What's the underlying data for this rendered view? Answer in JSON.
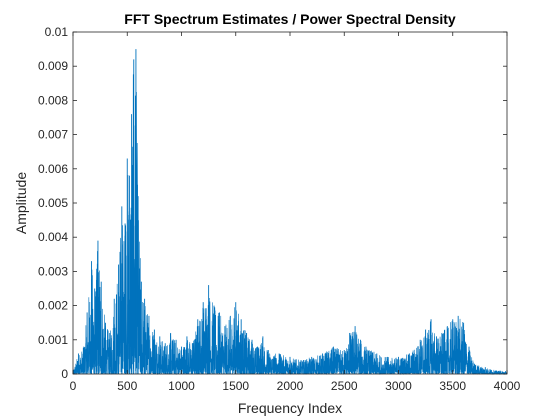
{
  "chart_data": {
    "type": "line",
    "title": "FFT Spectrum Estimates / Power Spectral Density",
    "xlabel": "Frequency Index",
    "ylabel": "Amplitude",
    "xlim": [
      0,
      4000
    ],
    "ylim": [
      0,
      0.01
    ],
    "x_ticks": [
      "0",
      "500",
      "1000",
      "1500",
      "2000",
      "2500",
      "3000",
      "3500",
      "4000"
    ],
    "y_ticks": [
      "0",
      "0.001",
      "0.002",
      "0.003",
      "0.004",
      "0.005",
      "0.006",
      "0.007",
      "0.008",
      "0.009",
      "0.01"
    ],
    "grid": false,
    "legend": "none",
    "line_color": "#0072BD",
    "series": [
      {
        "x": [
          0,
          50,
          100,
          130,
          170,
          200,
          230,
          260,
          300,
          340,
          380,
          420,
          450,
          480,
          500,
          520,
          540,
          560,
          580,
          600,
          630,
          660,
          700,
          750,
          800,
          850,
          900,
          950,
          1000,
          1050,
          1100,
          1150,
          1200,
          1250,
          1300,
          1350,
          1400,
          1450,
          1500,
          1550,
          1600,
          1650,
          1700,
          1750,
          1800,
          1900,
          2000,
          2100,
          2200,
          2300,
          2400,
          2500,
          2550,
          2600,
          2650,
          2700,
          2800,
          2900,
          3000,
          3100,
          3200,
          3250,
          3300,
          3350,
          3400,
          3450,
          3500,
          3550,
          3600,
          3650,
          3700,
          3800,
          3900,
          4000
        ],
        "y": [
          0.0001,
          0.0006,
          0.0008,
          0.0018,
          0.0033,
          0.0025,
          0.0039,
          0.0027,
          0.0015,
          0.0012,
          0.0022,
          0.0032,
          0.0049,
          0.0044,
          0.0063,
          0.0058,
          0.0076,
          0.0092,
          0.0095,
          0.0052,
          0.0027,
          0.0022,
          0.0017,
          0.0013,
          0.0011,
          0.0009,
          0.0012,
          0.001,
          0.0008,
          0.0011,
          0.0009,
          0.0016,
          0.0021,
          0.0026,
          0.002,
          0.0018,
          0.0014,
          0.0017,
          0.0021,
          0.0016,
          0.0012,
          0.001,
          0.0008,
          0.0011,
          0.0007,
          0.0006,
          0.0005,
          0.0004,
          0.0005,
          0.0006,
          0.0008,
          0.0007,
          0.0012,
          0.0014,
          0.001,
          0.0008,
          0.0006,
          0.0005,
          0.0005,
          0.0006,
          0.001,
          0.0013,
          0.0016,
          0.0011,
          0.0012,
          0.0014,
          0.0016,
          0.0017,
          0.0015,
          0.0008,
          0.0003,
          0.0002,
          0.0001,
          0.0001
        ]
      }
    ]
  }
}
